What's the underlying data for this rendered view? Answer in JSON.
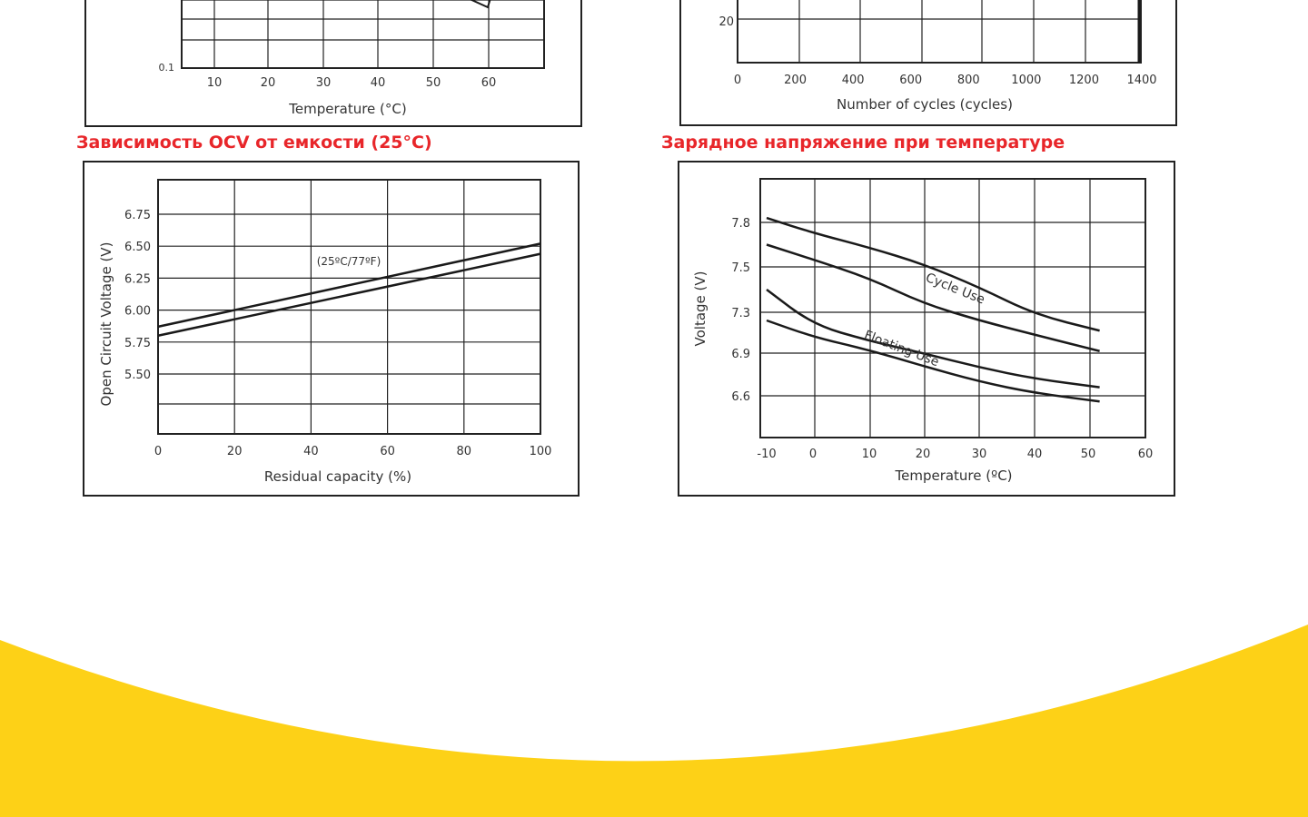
{
  "colors": {
    "title_red": "#e8262a",
    "wave_yellow": "#fdd117",
    "curve": "#1a1a1a",
    "grid": "#222222"
  },
  "chart_data": [
    {
      "id": "temperature-partial",
      "type": "line",
      "x_ticks": [
        "10",
        "20",
        "30",
        "40",
        "50",
        "60"
      ],
      "y_ticks": [
        "0.1"
      ],
      "xlabel": "Temperature (°C)",
      "xlim": [
        0,
        70
      ],
      "cropped": "top"
    },
    {
      "id": "cycles-partial",
      "type": "line",
      "x_ticks": [
        "0",
        "200",
        "400",
        "600",
        "800",
        "1000",
        "1200",
        "1400"
      ],
      "y_ticks": [
        "20"
      ],
      "xlabel": "Number of cycles (cycles)",
      "xlim": [
        0,
        1400
      ],
      "cropped": "top"
    },
    {
      "id": "ocv-capacity",
      "type": "line",
      "title": "Зависимость OCV от емкости (25°C)",
      "xlabel": "Residual capacity (%)",
      "ylabel": "Open Circuit Voltage (V)",
      "x_ticks": [
        "0",
        "20",
        "40",
        "60",
        "80",
        "100"
      ],
      "y_ticks": [
        "5.50",
        "5.75",
        "6.00",
        "6.25",
        "6.50",
        "6.75"
      ],
      "xlim": [
        0,
        100
      ],
      "annotation": "(25ºC/77ºF)",
      "series": [
        {
          "x": [
            0,
            100
          ],
          "values": [
            5.87,
            6.52
          ]
        },
        {
          "x": [
            0,
            100
          ],
          "values": [
            5.8,
            6.44
          ]
        }
      ]
    },
    {
      "id": "charge-voltage-temperature",
      "type": "line",
      "title": "Зарядное напряжение при температуре",
      "xlabel": "Temperature (ºC)",
      "ylabel": "Voltage (V)",
      "x_ticks": [
        "-10",
        "0",
        "10",
        "20",
        "30",
        "40",
        "50",
        "60"
      ],
      "y_ticks": [
        "6.6",
        "6.9",
        "7.3",
        "7.5",
        "7.8"
      ],
      "xlim": [
        -10,
        60
      ],
      "labels": [
        "Cycle Use",
        "Floating Use"
      ],
      "series": [
        {
          "name": "Cycle Use",
          "x": [
            -10,
            0,
            10,
            20,
            30,
            40,
            52
          ],
          "values": [
            7.83,
            7.73,
            7.63,
            7.52,
            7.41,
            7.28,
            7.12
          ]
        },
        {
          "name": "Cycle Use",
          "x": [
            -10,
            0,
            10,
            20,
            30,
            40,
            52
          ],
          "values": [
            7.65,
            7.55,
            7.45,
            7.34,
            7.22,
            7.08,
            6.92
          ]
        },
        {
          "name": "Floating Use",
          "x": [
            -10,
            0,
            10,
            20,
            30,
            40,
            52
          ],
          "values": [
            7.4,
            7.18,
            7.02,
            6.9,
            6.8,
            6.72,
            6.66
          ]
        },
        {
          "name": "Floating Use",
          "x": [
            -10,
            0,
            10,
            20,
            30,
            40,
            52
          ],
          "values": [
            7.22,
            7.06,
            6.93,
            6.81,
            6.7,
            6.62,
            6.56
          ]
        }
      ]
    }
  ]
}
